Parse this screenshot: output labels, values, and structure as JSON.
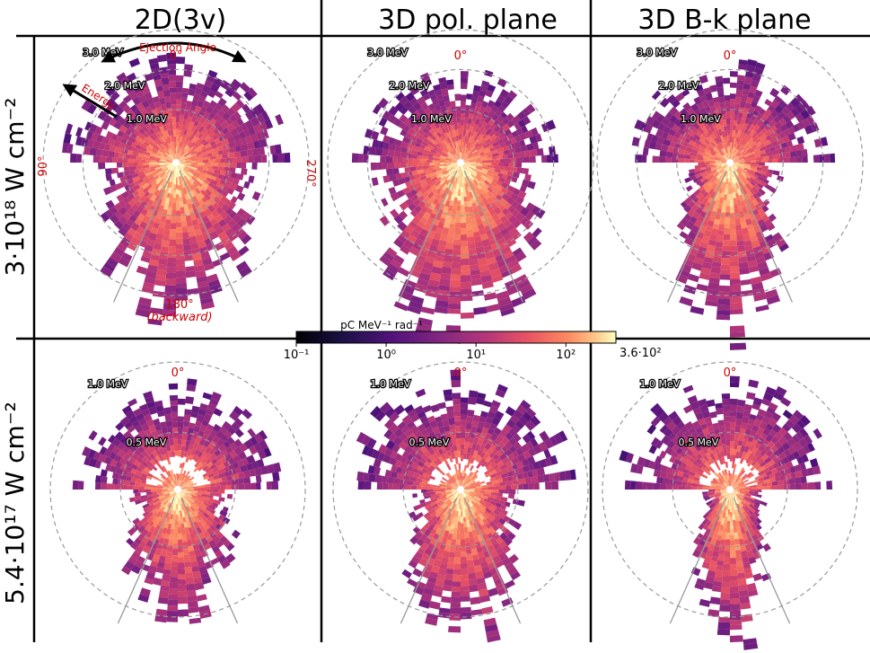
{
  "chart_data": {
    "type": "heatmap",
    "subtype": "polar-histogram-grid",
    "column_titles": [
      "2D(3v)",
      "3D pol. plane",
      "3D B-k plane"
    ],
    "row_titles": [
      "3·10¹⁸ W cm⁻²",
      "5.4·10¹⁷ W cm⁻²"
    ],
    "angle_axis": {
      "label": "Ejection Angle",
      "ticks": [
        "0°",
        "90°",
        "180°",
        "270°"
      ],
      "backward_note": "(backward)"
    },
    "radial_axis": {
      "label": "Energy"
    },
    "rows": [
      {
        "intensity": "3·10¹⁸ W cm⁻²",
        "energy_rings_MeV": [
          "1.0 MeV",
          "2.0 MeV",
          "3.0 MeV"
        ],
        "energy_max_MeV": 3.0
      },
      {
        "intensity": "5.4·10¹⁷ W cm⁻²",
        "energy_rings_MeV": [
          "0.5 MeV",
          "1.0 MeV"
        ],
        "energy_max_MeV": 1.0
      }
    ],
    "colorbar": {
      "label": "pC MeV⁻¹ rad⁻¹",
      "scale": "log",
      "range": [
        0.1,
        360
      ],
      "tick_labels": [
        "10⁻¹",
        "10⁰",
        "10¹",
        "10²"
      ],
      "max_label": "3.6·10²",
      "colormap": "magma"
    },
    "panels": [
      {
        "row": 0,
        "col": 0,
        "name": "2D(3v) high intensity"
      },
      {
        "row": 0,
        "col": 1,
        "name": "3D pol. plane high intensity"
      },
      {
        "row": 0,
        "col": 2,
        "name": "3D B-k plane high intensity"
      },
      {
        "row": 1,
        "col": 0,
        "name": "2D(3v) low intensity"
      },
      {
        "row": 1,
        "col": 1,
        "name": "3D pol. plane low intensity"
      },
      {
        "row": 1,
        "col": 2,
        "name": "3D B-k plane low intensity"
      }
    ]
  },
  "colors": {
    "angle_label": "#cc0000",
    "ring": "#999999"
  }
}
